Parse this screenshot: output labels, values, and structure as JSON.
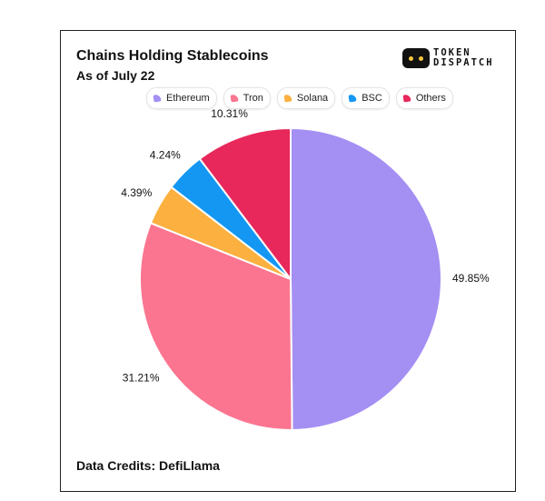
{
  "header": {
    "title": "Chains Holding Stablecoins",
    "subtitle": "As of July 22"
  },
  "logo": {
    "line1": "TOKEN",
    "line2": "DISPATCH",
    "icon": "token-dispatch-eyes-icon"
  },
  "footer": {
    "credits": "Data Credits: DefiLlama"
  },
  "chart_data": {
    "type": "pie",
    "title": "Chains Holding Stablecoins",
    "subtitle": "As of July 22",
    "legend_placement": "top",
    "slices": [
      {
        "label": "Ethereum",
        "value": 49.85,
        "display": "49.85%",
        "color": "#a48ff3"
      },
      {
        "label": "Tron",
        "value": 31.21,
        "display": "31.21%",
        "color": "#fb7590"
      },
      {
        "label": "Solana",
        "value": 4.39,
        "display": "4.39%",
        "color": "#fbb040"
      },
      {
        "label": "BSC",
        "value": 4.24,
        "display": "4.24%",
        "color": "#1397f3"
      },
      {
        "label": "Others",
        "value": 10.31,
        "display": "10.31%",
        "color": "#e8275a"
      }
    ]
  }
}
